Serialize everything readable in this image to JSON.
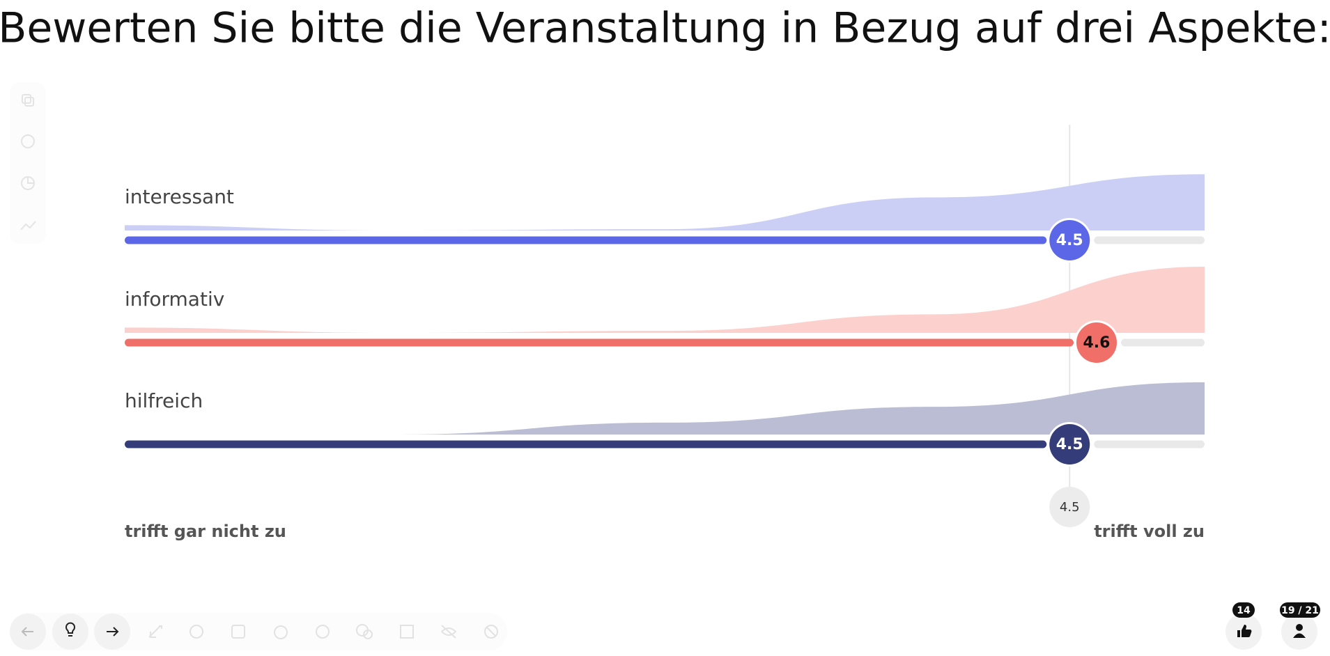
{
  "chart_data": {
    "type": "rating",
    "title": "Bewerten Sie bitte die Veranstaltung in Bezug auf drei Aspekte:",
    "xlim": [
      1,
      5
    ],
    "dlim": [
      0,
      1
    ],
    "min_label": "trifft gar nicht zu",
    "max_label": "trifft voll zu",
    "average": 4.5,
    "items": [
      {
        "name": "interessant",
        "value": 4.5,
        "color": "#5b67e6",
        "area_color": "#cccff5",
        "text_color": "#ffffff",
        "distribution": [
          0.08,
          0,
          0.02,
          0.5,
          0.85
        ]
      },
      {
        "name": "informativ",
        "value": 4.6,
        "color": "#f07069",
        "area_color": "#fbd0cd",
        "text_color": "#111111",
        "distribution": [
          0.08,
          0,
          0.03,
          0.28,
          1
        ]
      },
      {
        "name": "hilfreich",
        "value": 4.5,
        "color": "#343c7a",
        "area_color": "#babdd3",
        "text_color": "#ffffff",
        "distribution": [
          0,
          0,
          0.18,
          0.42,
          0.79
        ]
      }
    ]
  },
  "footer": {
    "reactions": 14,
    "participants": "19 / 21"
  }
}
